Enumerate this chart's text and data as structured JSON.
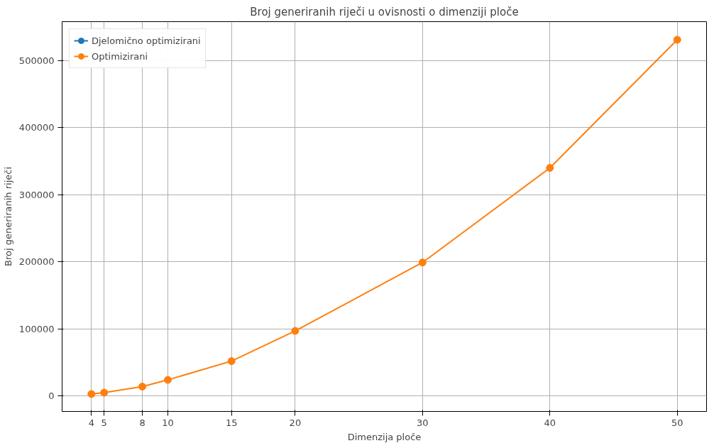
{
  "chart_data": {
    "type": "line",
    "title": "Broj generiranih riječi u ovisnosti o dimenziji ploče",
    "xlabel": "Dimenzija ploče",
    "ylabel": "Broj generiranih riječi",
    "x": [
      4,
      5,
      8,
      10,
      15,
      20,
      30,
      40,
      50
    ],
    "series": [
      {
        "name": "Djelomično optimizirani",
        "color": "#1f77b4",
        "values": [
          null,
          null,
          null,
          null,
          null,
          null,
          null,
          null,
          null
        ]
      },
      {
        "name": "Optimizirani",
        "color": "#ff7f0e",
        "values": [
          3000,
          5000,
          14000,
          24000,
          52000,
          97000,
          199000,
          340000,
          531000
        ]
      }
    ],
    "xlim": [
      1.7,
      52.3
    ],
    "ylim": [
      -23000,
      558000
    ],
    "xticks": [
      4,
      5,
      8,
      10,
      15,
      20,
      30,
      40,
      50
    ],
    "yticks": [
      0,
      100000,
      200000,
      300000,
      400000,
      500000
    ],
    "grid": true,
    "legend": "top left",
    "marker": "circle",
    "line_style": "solid"
  }
}
